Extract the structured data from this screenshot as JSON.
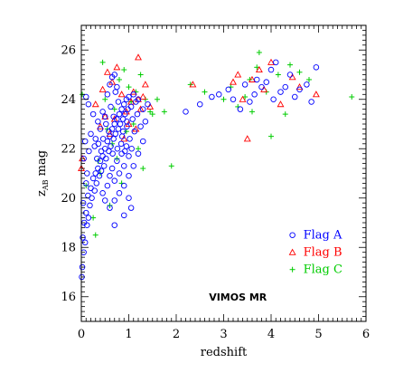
{
  "chart_data": {
    "type": "scatter",
    "title": "",
    "xlabel": "redshift",
    "ylabel_main": "z",
    "ylabel_sub": "AB",
    "ylabel_rest": " mag",
    "xlim": [
      0,
      6
    ],
    "ylim": [
      15,
      27
    ],
    "x_ticks": [
      "0",
      "1",
      "2",
      "3",
      "4",
      "5",
      "6"
    ],
    "y_ticks": [
      "16",
      "18",
      "20",
      "22",
      "24",
      "26"
    ],
    "annotation": "VIMOS MR",
    "legend_position": "bottom-right",
    "grid": false,
    "colors": {
      "flag_a": "#0000ff",
      "flag_b": "#ff0000",
      "flag_c": "#00cc00",
      "axes": "#000000"
    },
    "series": [
      {
        "name": "Flag A",
        "marker": "circle",
        "points": [
          [
            0.01,
            16.8
          ],
          [
            0.02,
            17.2
          ],
          [
            0.05,
            17.8
          ],
          [
            0.03,
            18.4
          ],
          [
            0.08,
            18.2
          ],
          [
            0.06,
            19.0
          ],
          [
            0.1,
            19.4
          ],
          [
            0.12,
            18.9
          ],
          [
            0.04,
            19.8
          ],
          [
            0.15,
            19.2
          ],
          [
            0.14,
            20.1
          ],
          [
            0.18,
            19.7
          ],
          [
            0.2,
            20.4
          ],
          [
            0.22,
            20.0
          ],
          [
            0.1,
            20.6
          ],
          [
            0.25,
            20.8
          ],
          [
            0.28,
            20.3
          ],
          [
            0.3,
            21.0
          ],
          [
            0.32,
            20.6
          ],
          [
            0.35,
            21.2
          ],
          [
            0.38,
            20.9
          ],
          [
            0.4,
            21.5
          ],
          [
            0.42,
            21.1
          ],
          [
            0.45,
            21.7
          ],
          [
            0.48,
            21.3
          ],
          [
            0.5,
            22.0
          ],
          [
            0.52,
            21.6
          ],
          [
            0.55,
            22.3
          ],
          [
            0.58,
            21.9
          ],
          [
            0.6,
            22.5
          ],
          [
            0.62,
            22.1
          ],
          [
            0.65,
            22.8
          ],
          [
            0.68,
            22.4
          ],
          [
            0.7,
            23.0
          ],
          [
            0.72,
            22.6
          ],
          [
            0.75,
            23.2
          ],
          [
            0.78,
            22.8
          ],
          [
            0.8,
            23.4
          ],
          [
            0.82,
            23.0
          ],
          [
            0.85,
            23.6
          ],
          [
            0.88,
            23.2
          ],
          [
            0.9,
            23.8
          ],
          [
            0.92,
            23.4
          ],
          [
            0.95,
            24.0
          ],
          [
            0.98,
            23.6
          ],
          [
            1.0,
            24.1
          ],
          [
            1.05,
            23.7
          ],
          [
            1.1,
            24.2
          ],
          [
            1.15,
            23.9
          ],
          [
            1.2,
            24.0
          ],
          [
            0.3,
            22.4
          ],
          [
            0.35,
            23.1
          ],
          [
            0.4,
            22.8
          ],
          [
            0.45,
            23.5
          ],
          [
            0.5,
            23.3
          ],
          [
            0.55,
            24.2
          ],
          [
            0.6,
            24.6
          ],
          [
            0.65,
            24.9
          ],
          [
            0.7,
            25.0
          ],
          [
            0.75,
            24.5
          ],
          [
            0.55,
            20.5
          ],
          [
            0.6,
            20.9
          ],
          [
            0.65,
            21.2
          ],
          [
            0.7,
            20.7
          ],
          [
            0.75,
            21.5
          ],
          [
            0.8,
            21.0
          ],
          [
            0.85,
            21.8
          ],
          [
            0.9,
            21.3
          ],
          [
            0.95,
            22.1
          ],
          [
            1.0,
            21.7
          ],
          [
            0.45,
            20.2
          ],
          [
            0.5,
            19.9
          ],
          [
            0.6,
            19.6
          ],
          [
            0.7,
            19.9
          ],
          [
            0.8,
            20.2
          ],
          [
            0.9,
            20.5
          ],
          [
            1.0,
            20.9
          ],
          [
            1.1,
            21.3
          ],
          [
            1.2,
            21.8
          ],
          [
            1.3,
            22.3
          ],
          [
            0.05,
            21.6
          ],
          [
            0.08,
            22.3
          ],
          [
            0.12,
            21.0
          ],
          [
            0.16,
            21.9
          ],
          [
            0.2,
            22.6
          ],
          [
            0.25,
            23.4
          ],
          [
            0.15,
            23.8
          ],
          [
            0.1,
            24.1
          ],
          [
            0.28,
            22.1
          ],
          [
            0.33,
            21.6
          ],
          [
            0.62,
            23.7
          ],
          [
            0.68,
            23.3
          ],
          [
            0.72,
            24.3
          ],
          [
            0.78,
            23.9
          ],
          [
            0.84,
            22.2
          ],
          [
            0.88,
            22.7
          ],
          [
            0.92,
            21.9
          ],
          [
            0.96,
            22.9
          ],
          [
            1.02,
            22.4
          ],
          [
            1.08,
            23.2
          ],
          [
            1.12,
            22.7
          ],
          [
            1.18,
            23.4
          ],
          [
            1.25,
            22.9
          ],
          [
            1.3,
            23.6
          ],
          [
            1.35,
            23.1
          ],
          [
            1.4,
            23.8
          ],
          [
            1.0,
            20.0
          ],
          [
            1.05,
            19.6
          ],
          [
            0.9,
            19.3
          ],
          [
            0.7,
            18.9
          ],
          [
            0.76,
            22.0
          ],
          [
            0.86,
            22.5
          ],
          [
            0.66,
            21.8
          ],
          [
            0.58,
            22.7
          ],
          [
            0.52,
            23.0
          ],
          [
            0.46,
            22.4
          ],
          [
            0.42,
            21.9
          ],
          [
            0.36,
            22.2
          ],
          [
            0.96,
            23.1
          ],
          [
            1.06,
            22.0
          ],
          [
            2.2,
            23.5
          ],
          [
            2.5,
            23.8
          ],
          [
            2.75,
            24.1
          ],
          [
            2.9,
            24.2
          ],
          [
            3.1,
            24.4
          ],
          [
            3.2,
            24.0
          ],
          [
            3.35,
            23.6
          ],
          [
            3.45,
            24.6
          ],
          [
            3.55,
            23.9
          ],
          [
            3.65,
            24.2
          ],
          [
            3.8,
            24.5
          ],
          [
            3.9,
            24.7
          ],
          [
            4.0,
            25.2
          ],
          [
            4.1,
            25.5
          ],
          [
            4.2,
            24.3
          ],
          [
            4.3,
            24.5
          ],
          [
            4.4,
            25.0
          ],
          [
            4.5,
            24.1
          ],
          [
            4.6,
            24.4
          ],
          [
            4.75,
            24.6
          ],
          [
            4.85,
            23.9
          ],
          [
            4.95,
            25.3
          ],
          [
            3.7,
            24.8
          ],
          [
            4.05,
            24.0
          ]
        ]
      },
      {
        "name": "Flag B",
        "marker": "triangle",
        "points": [
          [
            0.0,
            21.2
          ],
          [
            0.02,
            21.6
          ],
          [
            0.3,
            23.8
          ],
          [
            0.45,
            24.4
          ],
          [
            0.55,
            25.1
          ],
          [
            0.65,
            24.7
          ],
          [
            0.75,
            25.3
          ],
          [
            0.85,
            24.2
          ],
          [
            0.95,
            23.5
          ],
          [
            1.05,
            23.9
          ],
          [
            1.1,
            24.3
          ],
          [
            1.2,
            24.0
          ],
          [
            1.25,
            23.6
          ],
          [
            1.3,
            24.1
          ],
          [
            1.35,
            24.6
          ],
          [
            1.45,
            23.7
          ],
          [
            0.6,
            22.6
          ],
          [
            0.7,
            23.2
          ],
          [
            0.9,
            22.4
          ],
          [
            1.0,
            23.0
          ],
          [
            1.15,
            22.8
          ],
          [
            0.5,
            23.3
          ],
          [
            0.4,
            22.9
          ],
          [
            1.2,
            25.7
          ],
          [
            2.35,
            24.6
          ],
          [
            3.2,
            24.7
          ],
          [
            3.3,
            25.0
          ],
          [
            3.5,
            22.4
          ],
          [
            3.6,
            24.8
          ],
          [
            3.75,
            25.2
          ],
          [
            3.85,
            24.4
          ],
          [
            4.0,
            25.5
          ],
          [
            4.2,
            23.8
          ],
          [
            4.45,
            24.9
          ],
          [
            4.6,
            24.5
          ],
          [
            4.95,
            24.2
          ],
          [
            3.4,
            24.0
          ]
        ]
      },
      {
        "name": "Flag C",
        "marker": "plus",
        "points": [
          [
            0.02,
            24.2
          ],
          [
            0.1,
            20.5
          ],
          [
            0.3,
            18.5
          ],
          [
            0.35,
            21.5
          ],
          [
            0.45,
            25.5
          ],
          [
            0.5,
            24.0
          ],
          [
            0.55,
            22.8
          ],
          [
            0.6,
            19.7
          ],
          [
            0.7,
            23.6
          ],
          [
            0.8,
            24.8
          ],
          [
            0.9,
            25.2
          ],
          [
            1.0,
            24.5
          ],
          [
            1.1,
            23.0
          ],
          [
            1.2,
            22.0
          ],
          [
            1.3,
            21.2
          ],
          [
            1.35,
            24.0
          ],
          [
            1.45,
            23.5
          ],
          [
            1.5,
            23.4
          ],
          [
            1.6,
            24.0
          ],
          [
            1.75,
            23.5
          ],
          [
            1.9,
            21.3
          ],
          [
            0.65,
            22.2
          ],
          [
            0.75,
            21.6
          ],
          [
            0.85,
            20.6
          ],
          [
            0.95,
            22.7
          ],
          [
            1.05,
            23.9
          ],
          [
            1.25,
            25.0
          ],
          [
            1.15,
            24.3
          ],
          [
            0.4,
            21.0
          ],
          [
            0.25,
            19.2
          ],
          [
            2.3,
            24.6
          ],
          [
            2.6,
            24.3
          ],
          [
            3.0,
            24.0
          ],
          [
            3.15,
            24.5
          ],
          [
            3.3,
            23.7
          ],
          [
            3.45,
            24.1
          ],
          [
            3.55,
            24.8
          ],
          [
            3.6,
            23.5
          ],
          [
            3.7,
            25.3
          ],
          [
            3.75,
            25.9
          ],
          [
            3.9,
            24.3
          ],
          [
            4.0,
            22.5
          ],
          [
            4.15,
            25.0
          ],
          [
            4.3,
            23.4
          ],
          [
            4.4,
            25.4
          ],
          [
            4.6,
            25.1
          ],
          [
            4.8,
            24.8
          ],
          [
            5.7,
            24.1
          ]
        ]
      }
    ]
  }
}
